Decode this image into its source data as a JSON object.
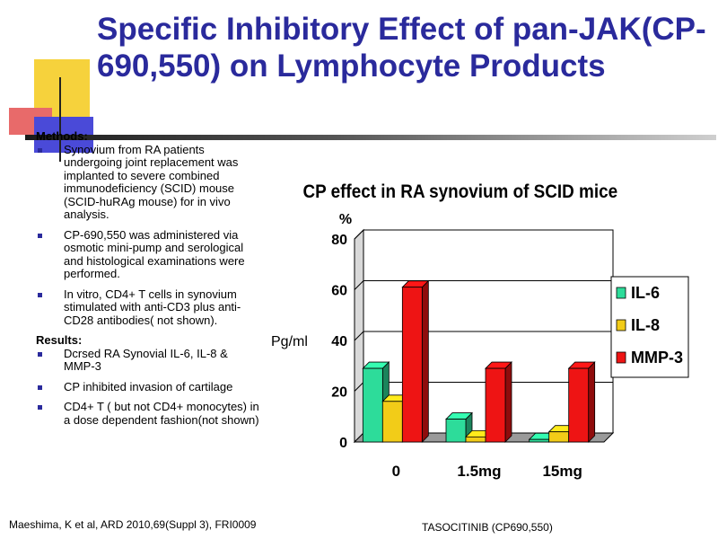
{
  "slide": {
    "title": "Specific Inhibitory Effect of pan-JAK(CP-690,550) on Lymphocyte Products",
    "methods_heading": "Methods:",
    "methods": [
      "Synovium from RA patients undergoing joint replacement was implanted to severe combined immunodeficiency (SCID) mouse (SCID-huRAg mouse) for in vivo analysis.",
      "CP-690,550 was administered via osmotic mini-pump and serological and histological examinations were performed.",
      "In vitro, CD4+ T cells in synovium  stimulated with anti-CD3 plus anti-CD28 antibodies( not shown)."
    ],
    "results_heading": "Results:",
    "results": [
      "Dcrsed RA Synovial IL-6, IL-8 & MMP-3",
      "CP inhibited invasion of cartilage",
      "CD4+ T ( but not CD4+ monocytes) in a dose dependent fashion(not shown)"
    ],
    "footer_left": "Maeshima, K et al, ARD 2010,69(Suppl 3), FRI0009",
    "footer_right": "TASOCITINIB  (CP690,550)",
    "side_label": "Pg/ml"
  },
  "colors": {
    "title": "#2a2a9c",
    "bullet": "#2a2a9c",
    "deco_yellow": "#f6d23c",
    "deco_red": "#e83c3c",
    "deco_blue": "#3c3cc8"
  },
  "chart_data": {
    "type": "bar",
    "title": "CP effect in RA synovium of SCID mice",
    "ylabel": "%",
    "categories": [
      "0",
      "1.5mg",
      "15mg"
    ],
    "series": [
      {
        "name": "IL-6",
        "values": [
          29,
          9,
          1
        ],
        "color": "#2ddc9a"
      },
      {
        "name": "IL-8",
        "values": [
          16,
          2,
          4
        ],
        "color": "#f2cc18"
      },
      {
        "name": "MMP-3",
        "values": [
          61,
          29,
          29
        ],
        "color": "#ee1414"
      }
    ],
    "ylim": [
      0,
      80
    ],
    "yticks": [
      0,
      20,
      40,
      60,
      80
    ],
    "grid": true,
    "legend": "right",
    "style": "3d"
  }
}
